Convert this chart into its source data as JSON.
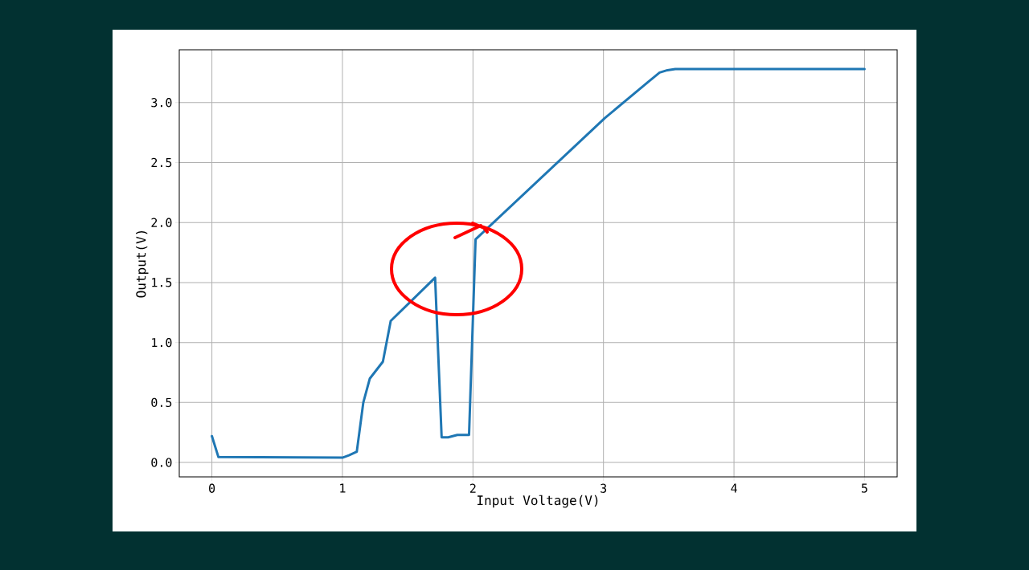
{
  "chart_data": {
    "type": "line",
    "xlabel": "Input Voltage(V)",
    "ylabel": "Output(V)",
    "x": [
      0,
      0.05,
      1.0,
      1.05,
      1.11,
      1.16,
      1.21,
      1.31,
      1.37,
      1.71,
      1.76,
      1.81,
      1.88,
      1.97,
      2.02,
      3.01,
      3.34,
      3.43,
      3.49,
      3.55,
      5
    ],
    "series": [
      {
        "color": "#1f77b4",
        "values": [
          0.22,
          0.045,
          0.04,
          0.06,
          0.09,
          0.5,
          0.7,
          0.84,
          1.18,
          1.54,
          0.21,
          0.21,
          0.23,
          0.23,
          1.86,
          2.87,
          3.17,
          3.25,
          3.27,
          3.28,
          3.28
        ]
      }
    ],
    "xlim": [
      -0.25,
      5.25
    ],
    "ylim": [
      -0.12,
      3.44
    ],
    "xticks": [
      0,
      1,
      2,
      3,
      4,
      5
    ],
    "yticks": [
      {
        "value": 0,
        "label": "0.0"
      },
      {
        "value": 0.5,
        "label": "0.5"
      },
      {
        "value": 1,
        "label": "1.0"
      },
      {
        "value": 1.5,
        "label": "1.5"
      },
      {
        "value": 2,
        "label": "2.0"
      },
      {
        "value": 2.5,
        "label": "2.5"
      },
      {
        "value": 3,
        "label": "3.0"
      }
    ],
    "grid": true,
    "marker": "none",
    "line_style": "solid"
  }
}
